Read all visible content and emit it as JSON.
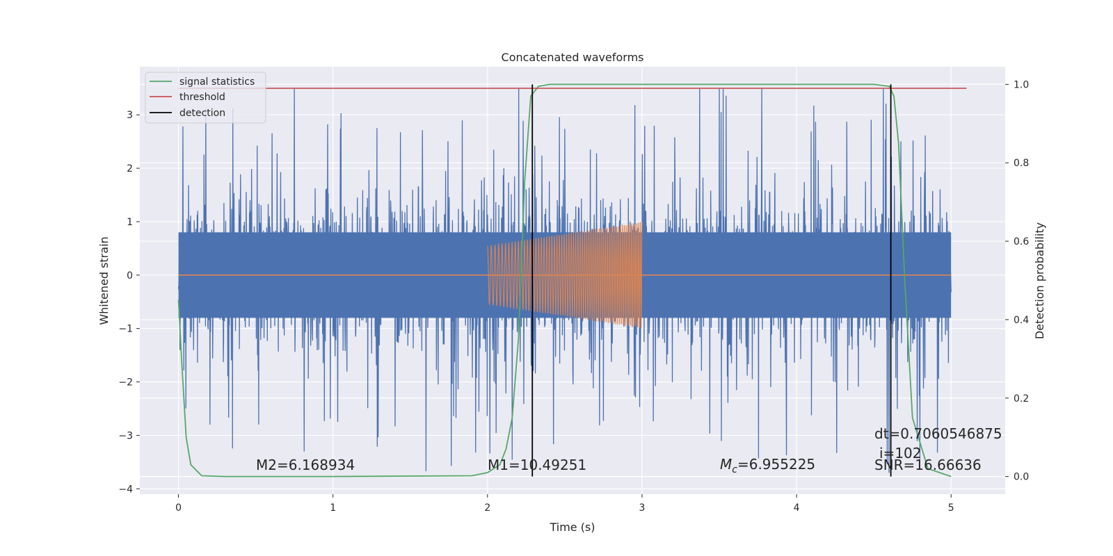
{
  "chart_data": {
    "type": "line",
    "title": "Concatenated waveforms",
    "xlabel": "Time (s)",
    "ylabel": "Whitened strain",
    "ylabel_right": "Detection probability",
    "xlim": [
      -0.25,
      5.35
    ],
    "ylim": [
      -4.1,
      3.9
    ],
    "ylim_right": [
      -0.045,
      1.045
    ],
    "x_ticks": [
      0,
      1,
      2,
      3,
      4,
      5
    ],
    "x_tick_labels": [
      "0",
      "1",
      "2",
      "3",
      "4",
      "5"
    ],
    "y_ticks": [
      -4,
      -3,
      -2,
      -1,
      0,
      1,
      2,
      3
    ],
    "y_tick_labels": [
      "−4",
      "−3",
      "−2",
      "−1",
      "0",
      "1",
      "2",
      "3"
    ],
    "y_right_ticks": [
      0.0,
      0.2,
      0.4,
      0.6,
      0.8,
      1.0
    ],
    "y_right_tick_labels": [
      "0.0",
      "0.2",
      "0.4",
      "0.6",
      "0.8",
      "1.0"
    ],
    "grid": true,
    "legend_position": "top-left",
    "colors": {
      "strain": "#4c72b0",
      "template": "#dd8452",
      "signal_statistics": "#55a868",
      "threshold": "#c44e52",
      "detection": "#000000",
      "background": "#eaeaf2",
      "grid": "#ffffff"
    },
    "series": [
      {
        "name": "strain",
        "x_range": [
          0,
          5
        ],
        "description_values": {
          "core_amplitude": 0.8,
          "spike_max": 3.5,
          "spike_min": -3.7
        }
      },
      {
        "name": "template",
        "x_range": [
          2,
          3
        ],
        "amplitude_start": 0.55,
        "amplitude_end": 1.0
      },
      {
        "name": "signal statistics",
        "axis": "right",
        "x": [
          0,
          0.02,
          0.05,
          0.08,
          0.15,
          0.3,
          1.0,
          1.9,
          2.0,
          2.08,
          2.12,
          2.16,
          2.2,
          2.24,
          2.28,
          2.33,
          2.4,
          3.0,
          4.5,
          4.6,
          4.63,
          4.66,
          4.7,
          4.75,
          4.85,
          5.0
        ],
        "y": [
          0.45,
          0.3,
          0.1,
          0.03,
          0.002,
          0.0,
          0.0,
          0.002,
          0.01,
          0.03,
          0.07,
          0.15,
          0.35,
          0.75,
          0.97,
          0.995,
          1.0,
          1.0,
          1.0,
          0.995,
          0.97,
          0.85,
          0.5,
          0.15,
          0.02,
          0.0
        ]
      },
      {
        "name": "threshold",
        "axis": "right",
        "x": [
          0,
          5.1
        ],
        "y": [
          0.99,
          0.99
        ]
      },
      {
        "name": "detection",
        "axis": "right",
        "x_positions": [
          2.29,
          4.61
        ],
        "y_range": [
          0.0,
          1.0
        ]
      }
    ],
    "legend": [
      {
        "label": "signal statistics",
        "color": "#55a868"
      },
      {
        "label": "threshold",
        "color": "#c44e52"
      },
      {
        "label": "detection",
        "color": "#000000"
      }
    ],
    "annotations": {
      "m2": "M2=6.168934",
      "m1": "M1=10.49251",
      "mc_symbol": "M",
      "mc_subscript": "c",
      "mc_value": "=6.955225",
      "snr": "SNR=16.66636",
      "dt": "dt=0.7060546875",
      "i": "i=102"
    }
  }
}
